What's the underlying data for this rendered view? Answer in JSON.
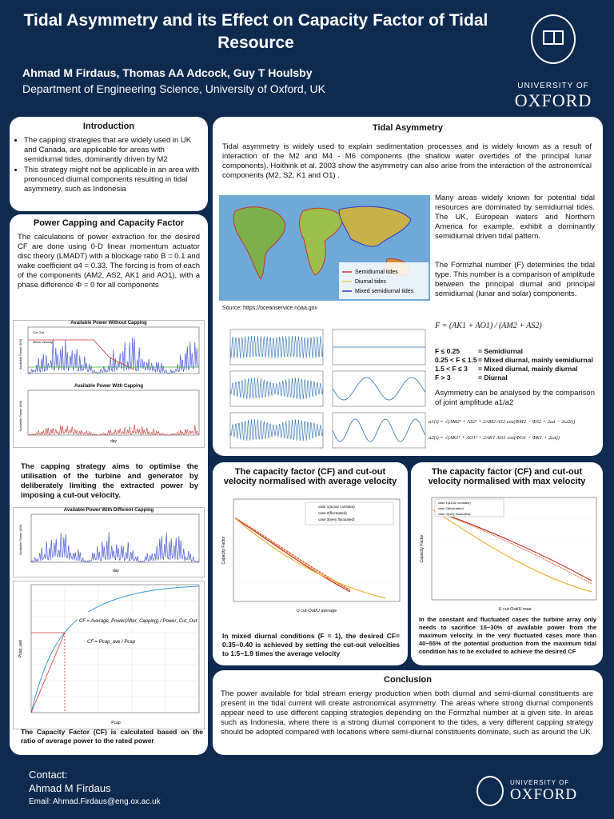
{
  "header": {
    "title": "Tidal Asymmetry and its Effect on Capacity Factor of Tidal Resource",
    "authors": "Ahmad M Firdaus, Thomas AA Adcock, Guy  T Houlsby",
    "department": "Department of Engineering Science, University of Oxford, UK",
    "logo_university": "UNIVERSITY OF",
    "logo_oxford": "OXFORD"
  },
  "introduction": {
    "title": "Introduction",
    "bullets": [
      "The capping strategies that are widely used in UK and Canada, are applicable for areas with semidiurnal tides, dominantly driven by M2",
      "This strategy might not be applicable in an area with pronounced diurnal components resulting in tidal asymmetry, such as Indonesia"
    ]
  },
  "power_capping": {
    "title": "Power Capping and Capacity Factor",
    "text": "The calculations of power extraction for the desired CF are done using 0-D linear momentum actuator disc theory (LMADT) with a blockage ratio B = 0.1 and wake coefficient α4 = 0.33. The forcing is from of each of the components (AM2, AS2, AK1 and AO1), with a phase difference Φ = 0 for all components",
    "chart1_title": "Available Power Without Capping",
    "chart2_title": "Available Power With Capping",
    "chart_ylabel": "Available Power (kW)",
    "chart_xlabel": "day",
    "legend_cutout": "Cut Out",
    "legend_mean": "Mean Velocity",
    "strategy_text": "The capping strategy aims to optimise the utilisation of the turbine and generator by deliberately limiting the extracted power by imposing a cut-out velocity.",
    "chart3_title": "Available Power With Different Capping",
    "cf_formula_1": "CF = Average_Power(After_Capping) / Power_Cut_Out",
    "cf_formula_2": "CF = Pcap_ave / Pcap",
    "chart4_xlabel": "Pcap",
    "chart4_ylabel": "Pcap_ave",
    "caption": "The Capacity Factor (CF) is calculated based on the ratio of average power to the rated power"
  },
  "tidal_asymmetry": {
    "title": "Tidal Asymmetry",
    "text": "Tidal asymmetry is widely used to explain sedimentation processes and is widely known as a result of interaction of the M2 and M4 - M6 components (the shallow water overtides of the principal lunar components). Hoithink et al. 2003 show the asymmetry can also arise from the interaction of the astronomical components (M2, S2, K1 and O1) .",
    "map_legend": [
      "Semidiurnal tides",
      "Diurnal tides",
      "Mixed semidiurnal tides"
    ],
    "source": "Source: https://oceanservice.noaa.gov",
    "text2": "Many areas widely known for potential tidal resources are dominated by semidiurnal tides. The UK, European waters and Northern America for example, exhibit a dominantly semidiurnal driven tidal pattern.",
    "text3": "The Formzhal number (F) determines the tidal type. This number is a comparison of amplitude between the principal diurnal and principal semidiurnal (lunar and solar) components.",
    "formula_f": "F = (AK1 + AO1) / (AM2 + AS2)",
    "ranges": [
      {
        "range": "F ≤ 0.25",
        "desc": "= Semidiurnal"
      },
      {
        "range": "0.25 < F ≤ 1.5",
        "desc": "= Mixed diurnal, mainly semidiurnal"
      },
      {
        "range": "1.5 < F ≤ 3",
        "desc": "= Mixed diurnal, mainly diurnal"
      },
      {
        "range": "F > 3",
        "desc": "= Diurnal"
      }
    ],
    "text4": "Asymmetry can be analysed by the comparison of joint amplitude a1/a2",
    "eq_a1": "a1(t) = √(AM2² + AS2² + 2AM2 AS2 cos(ΦM2 − ΦS2 + 2ωt − 2ω2t))",
    "eq_a2": "a2(t) = √(AK1² + AO1² + 2AK1 AO1 cos(ΦO1 − ΦK1 + 2ωt))"
  },
  "cf_avg": {
    "title": "The capacity factor (CF) and cut-out velocity normalised with average velocity",
    "xlabel": "U cut-Out/U average",
    "ylabel": "Capacity Factor",
    "legend": [
      "case 1(a1/a2 constant)",
      "case 2(fluctuated)",
      "case 3(very fluctuated)"
    ],
    "text": "In mixed diurnal conditions (F = 1), the desired CF= 0.35~0.40 is achieved by setting the cut-out velocities to 1.5~1.9 times the average velocity"
  },
  "cf_max": {
    "title": "The capacity factor (CF) and cut-out velocity normalised with max velocity",
    "xlabel": "U cut-Out/U max",
    "ylabel": "Capacity Factor",
    "legend": [
      "case 1(a1/a2 constant)",
      "case 2(fluctuated)",
      "case 3(very fluctuated)"
    ],
    "text": "In the constant and fluctuated cases the turbine array only needs to sacrifice 15~30% of available power from the maximum velocity. In the very fluctuated cases more than 40~55% of the potential production from the maximum tidal condition has to be excluded to achieve the desired CF"
  },
  "conclusion": {
    "title": "Conclusion",
    "text": "The power available for tidal stream energy production when both diurnal and semi-diurnal constituents are present in the tidal current will create astronomical asymmetry. The areas where strong diurnal components appear need to use different capping strategies depending on the Formzhal number at a given site. In areas such as Indonesia, where there is a strong diurnal component to the tides, a very different capping strategy should be adopted compared with locations where semi-diurnal constituents dominate, such as around the UK."
  },
  "contact": {
    "label": "Contact:",
    "name": "Ahmad M Firdaus",
    "email": "Email: Ahmad.Firdaus@eng.ox.ac.uk"
  },
  "colors": {
    "navy": "#0f2a4f",
    "red": "#d9342b",
    "blue": "#2b6fb3",
    "orange": "#e89a2c"
  }
}
